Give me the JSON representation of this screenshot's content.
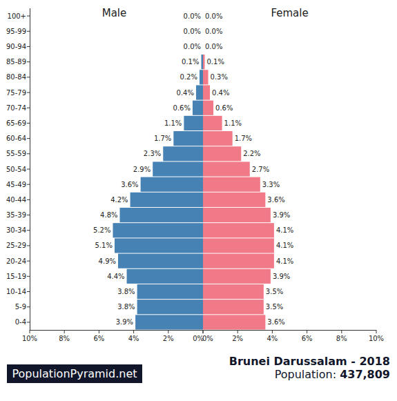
{
  "chart_data": [
    {
      "type": "bar",
      "orientation": "horizontal",
      "title": "Male",
      "categories": [
        "0-4",
        "5-9",
        "10-14",
        "15-19",
        "20-24",
        "25-29",
        "30-34",
        "35-39",
        "40-44",
        "45-49",
        "50-54",
        "55-59",
        "60-64",
        "65-69",
        "70-74",
        "75-79",
        "80-84",
        "85-89",
        "90-94",
        "95-99",
        "100+"
      ],
      "values": [
        3.9,
        3.8,
        3.8,
        4.4,
        4.9,
        5.1,
        5.2,
        4.8,
        4.2,
        3.6,
        2.9,
        2.3,
        1.7,
        1.1,
        0.6,
        0.4,
        0.2,
        0.1,
        0.0,
        0.0,
        0.0
      ],
      "value_labels": [
        "3.9%",
        "3.8%",
        "3.8%",
        "4.4%",
        "4.9%",
        "5.1%",
        "5.2%",
        "4.8%",
        "4.2%",
        "3.6%",
        "2.9%",
        "2.3%",
        "1.7%",
        "1.1%",
        "0.6%",
        "0.4%",
        "0.2%",
        "0.1%",
        "0.0%",
        "0.0%",
        "0.0%"
      ],
      "color": "#4682b4",
      "data_labels": true,
      "grid": false,
      "xlim": [
        10,
        0
      ],
      "xticks": [
        {
          "value": 10,
          "label": "10%"
        },
        {
          "value": 8,
          "label": "8%"
        },
        {
          "value": 6,
          "label": "6%"
        },
        {
          "value": 4,
          "label": "4%"
        },
        {
          "value": 2,
          "label": "2%"
        },
        {
          "value": 0,
          "label": "0%"
        }
      ]
    },
    {
      "type": "bar",
      "orientation": "horizontal",
      "title": "Female",
      "categories": [
        "0-4",
        "5-9",
        "10-14",
        "15-19",
        "20-24",
        "25-29",
        "30-34",
        "35-39",
        "40-44",
        "45-49",
        "50-54",
        "55-59",
        "60-64",
        "65-69",
        "70-74",
        "75-79",
        "80-84",
        "85-89",
        "90-94",
        "95-99",
        "100+"
      ],
      "values": [
        3.6,
        3.5,
        3.5,
        3.9,
        4.1,
        4.1,
        4.1,
        3.9,
        3.6,
        3.3,
        2.7,
        2.2,
        1.7,
        1.1,
        0.6,
        0.4,
        0.3,
        0.1,
        0.0,
        0.0,
        0.0
      ],
      "value_labels": [
        "3.6%",
        "3.5%",
        "3.5%",
        "3.9%",
        "4.1%",
        "4.1%",
        "4.1%",
        "3.9%",
        "3.6%",
        "3.3%",
        "2.7%",
        "2.2%",
        "1.7%",
        "1.1%",
        "0.6%",
        "0.4%",
        "0.3%",
        "0.1%",
        "0.0%",
        "0.0%",
        "0.0%"
      ],
      "color": "#f07a88",
      "data_labels": true,
      "grid": false,
      "tick_labels": "x",
      "xlim": [
        0,
        10
      ],
      "xticks": [
        {
          "value": 0,
          "label": "0%"
        },
        {
          "value": 2,
          "label": "2%"
        },
        {
          "value": 4,
          "label": "4%"
        },
        {
          "value": 6,
          "label": "6%"
        },
        {
          "value": 8,
          "label": "8%"
        },
        {
          "value": 10,
          "label": "10%"
        }
      ]
    }
  ],
  "footer": {
    "source": "PopulationPyramid.net",
    "title": "Brunei Darussalam - 2018",
    "population_label": "Population:",
    "population": "437,809"
  }
}
